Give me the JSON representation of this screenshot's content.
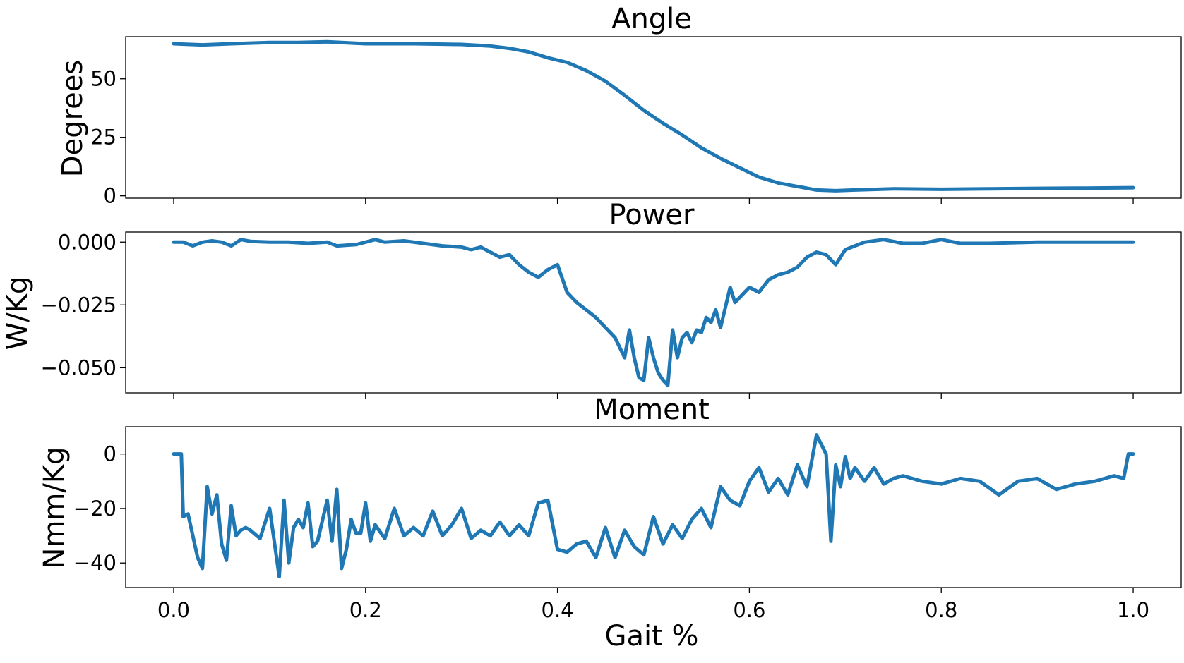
{
  "chart_data": [
    {
      "type": "line",
      "title": "Angle",
      "ylabel": "Degrees",
      "xlabel": "",
      "xlim": [
        -0.05,
        1.05
      ],
      "ylim": [
        -1,
        68
      ],
      "yticks": [
        0,
        25,
        50
      ],
      "ytick_labels": [
        "0",
        "25",
        "50"
      ],
      "xticks": [
        0.0,
        0.2,
        0.4,
        0.6,
        0.8,
        1.0
      ],
      "xtick_labels": [],
      "color": "#1f77b4",
      "series": [
        {
          "x": [
            0.0,
            0.03,
            0.06,
            0.1,
            0.13,
            0.16,
            0.2,
            0.25,
            0.3,
            0.33,
            0.35,
            0.37,
            0.39,
            0.41,
            0.43,
            0.45,
            0.47,
            0.49,
            0.51,
            0.53,
            0.55,
            0.57,
            0.59,
            0.61,
            0.63,
            0.65,
            0.67,
            0.69,
            0.71,
            0.75,
            0.8,
            0.85,
            0.9,
            0.95,
            1.0
          ],
          "y": [
            65,
            64.5,
            65,
            65.5,
            65.5,
            65.8,
            65,
            65,
            64.7,
            64,
            63,
            61.5,
            59,
            57,
            53.5,
            49,
            43,
            36.5,
            31,
            26,
            20.5,
            16,
            12,
            8,
            5.5,
            4,
            2.5,
            2.2,
            2.5,
            3,
            2.8,
            3,
            3.2,
            3.3,
            3.5
          ]
        }
      ]
    },
    {
      "type": "line",
      "title": "Power",
      "ylabel": "W/Kg",
      "xlabel": "",
      "xlim": [
        -0.05,
        1.05
      ],
      "ylim": [
        -0.06,
        0.004
      ],
      "yticks": [
        0.0,
        -0.025,
        -0.05
      ],
      "ytick_labels": [
        "0.000",
        "−0.025",
        "−0.050"
      ],
      "xticks": [
        0.0,
        0.2,
        0.4,
        0.6,
        0.8,
        1.0
      ],
      "xtick_labels": [],
      "color": "#1f77b4",
      "series": [
        {
          "x": [
            0.0,
            0.01,
            0.02,
            0.03,
            0.04,
            0.05,
            0.06,
            0.07,
            0.08,
            0.1,
            0.12,
            0.14,
            0.16,
            0.17,
            0.19,
            0.2,
            0.21,
            0.22,
            0.24,
            0.26,
            0.28,
            0.3,
            0.31,
            0.32,
            0.33,
            0.34,
            0.35,
            0.36,
            0.37,
            0.38,
            0.39,
            0.4,
            0.41,
            0.42,
            0.43,
            0.44,
            0.45,
            0.46,
            0.47,
            0.475,
            0.48,
            0.485,
            0.49,
            0.495,
            0.5,
            0.505,
            0.51,
            0.515,
            0.52,
            0.525,
            0.53,
            0.535,
            0.54,
            0.545,
            0.55,
            0.555,
            0.56,
            0.565,
            0.57,
            0.575,
            0.58,
            0.585,
            0.59,
            0.6,
            0.61,
            0.62,
            0.63,
            0.64,
            0.65,
            0.66,
            0.67,
            0.68,
            0.69,
            0.7,
            0.72,
            0.74,
            0.76,
            0.78,
            0.8,
            0.82,
            0.85,
            0.9,
            0.95,
            1.0
          ],
          "y": [
            0.0,
            0.0,
            -0.0015,
            0.0,
            0.0005,
            0.0,
            -0.0015,
            0.001,
            0.0003,
            0.0,
            0.0,
            -0.0005,
            0.0,
            -0.0015,
            -0.001,
            0.0,
            0.001,
            0.0,
            0.0005,
            -0.0005,
            -0.0015,
            -0.002,
            -0.003,
            -0.002,
            -0.004,
            -0.006,
            -0.005,
            -0.009,
            -0.012,
            -0.014,
            -0.011,
            -0.009,
            -0.02,
            -0.024,
            -0.027,
            -0.03,
            -0.034,
            -0.038,
            -0.046,
            -0.035,
            -0.046,
            -0.054,
            -0.055,
            -0.038,
            -0.046,
            -0.052,
            -0.055,
            -0.057,
            -0.035,
            -0.046,
            -0.038,
            -0.036,
            -0.04,
            -0.035,
            -0.036,
            -0.03,
            -0.032,
            -0.027,
            -0.034,
            -0.026,
            -0.018,
            -0.024,
            -0.022,
            -0.018,
            -0.02,
            -0.015,
            -0.013,
            -0.012,
            -0.01,
            -0.006,
            -0.004,
            -0.005,
            -0.009,
            -0.003,
            0.0,
            0.001,
            -0.0005,
            -0.0005,
            0.001,
            -0.0005,
            -0.0005,
            0.0,
            0.0,
            0.0
          ]
        }
      ]
    },
    {
      "type": "line",
      "title": "Moment",
      "ylabel": "Nmm/Kg",
      "xlabel": "Gait %",
      "xlim": [
        -0.05,
        1.05
      ],
      "ylim": [
        -49,
        10
      ],
      "yticks": [
        0,
        -20,
        -40
      ],
      "ytick_labels": [
        "0",
        "−20",
        "−40"
      ],
      "xticks": [
        0.0,
        0.2,
        0.4,
        0.6,
        0.8,
        1.0
      ],
      "xtick_labels": [
        "0.0",
        "0.2",
        "0.4",
        "0.6",
        "0.8",
        "1.0"
      ],
      "color": "#1f77b4",
      "series": [
        {
          "x": [
            0.0,
            0.008,
            0.01,
            0.015,
            0.02,
            0.025,
            0.03,
            0.035,
            0.04,
            0.045,
            0.05,
            0.055,
            0.06,
            0.065,
            0.07,
            0.075,
            0.08,
            0.09,
            0.1,
            0.11,
            0.115,
            0.12,
            0.125,
            0.13,
            0.135,
            0.14,
            0.145,
            0.15,
            0.16,
            0.165,
            0.17,
            0.175,
            0.18,
            0.185,
            0.19,
            0.195,
            0.2,
            0.205,
            0.21,
            0.22,
            0.23,
            0.24,
            0.25,
            0.26,
            0.27,
            0.28,
            0.29,
            0.3,
            0.31,
            0.32,
            0.33,
            0.34,
            0.35,
            0.36,
            0.37,
            0.38,
            0.39,
            0.4,
            0.41,
            0.42,
            0.43,
            0.44,
            0.45,
            0.46,
            0.47,
            0.48,
            0.49,
            0.5,
            0.51,
            0.52,
            0.53,
            0.54,
            0.55,
            0.56,
            0.57,
            0.58,
            0.59,
            0.6,
            0.61,
            0.62,
            0.63,
            0.64,
            0.65,
            0.66,
            0.67,
            0.68,
            0.685,
            0.69,
            0.695,
            0.7,
            0.705,
            0.71,
            0.72,
            0.73,
            0.74,
            0.75,
            0.76,
            0.78,
            0.8,
            0.82,
            0.84,
            0.86,
            0.88,
            0.9,
            0.92,
            0.94,
            0.96,
            0.98,
            0.99,
            0.995,
            1.0
          ],
          "y": [
            0,
            0,
            -23,
            -22,
            -30,
            -38,
            -42,
            -12,
            -22,
            -15,
            -33,
            -39,
            -19,
            -30,
            -28,
            -27,
            -28,
            -31,
            -20,
            -45,
            -17,
            -40,
            -27,
            -24,
            -27,
            -18,
            -34,
            -32,
            -17,
            -32,
            -13,
            -42,
            -35,
            -24,
            -29,
            -29,
            -18,
            -32,
            -26,
            -31,
            -20,
            -30,
            -27,
            -30,
            -21,
            -30,
            -26,
            -20,
            -31,
            -28,
            -30,
            -25,
            -30,
            -26,
            -30,
            -18,
            -17,
            -35,
            -36,
            -33,
            -32,
            -38,
            -27,
            -38,
            -28,
            -34,
            -37,
            -23,
            -33,
            -26,
            -31,
            -24,
            -20,
            -27,
            -12,
            -17,
            -19,
            -10,
            -5,
            -14,
            -9,
            -15,
            -4,
            -12,
            7,
            0,
            -32,
            -4,
            -12,
            -1,
            -9,
            -5,
            -10,
            -5,
            -11,
            -9,
            -8,
            -10,
            -11,
            -9,
            -10,
            -15,
            -10,
            -9,
            -13,
            -11,
            -10,
            -8,
            -9,
            0,
            0
          ]
        }
      ]
    }
  ]
}
